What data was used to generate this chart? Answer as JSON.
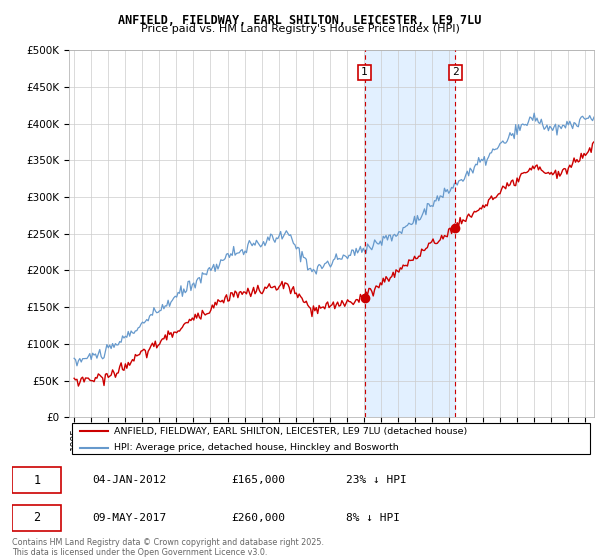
{
  "title": "ANFIELD, FIELDWAY, EARL SHILTON, LEICESTER, LE9 7LU",
  "subtitle": "Price paid vs. HM Land Registry's House Price Index (HPI)",
  "legend_line1": "ANFIELD, FIELDWAY, EARL SHILTON, LEICESTER, LE9 7LU (detached house)",
  "legend_line2": "HPI: Average price, detached house, Hinckley and Bosworth",
  "annotation1_label": "1",
  "annotation1_date": "04-JAN-2012",
  "annotation1_price": 165000,
  "annotation1_text": "23% ↓ HPI",
  "annotation1_year": 2012.04,
  "annotation1_dot_val": 163000,
  "annotation2_label": "2",
  "annotation2_date": "09-MAY-2017",
  "annotation2_price": 260000,
  "annotation2_text": "8% ↓ HPI",
  "annotation2_year": 2017.37,
  "annotation2_dot_val": 258000,
  "footer": "Contains HM Land Registry data © Crown copyright and database right 2025.\nThis data is licensed under the Open Government Licence v3.0.",
  "red_color": "#cc0000",
  "blue_color": "#6699cc",
  "shaded_region_color": "#ddeeff",
  "ylim": [
    0,
    500000
  ],
  "yticks": [
    0,
    50000,
    100000,
    150000,
    200000,
    250000,
    300000,
    350000,
    400000,
    450000,
    500000
  ],
  "ytick_labels": [
    "£0",
    "£50K",
    "£100K",
    "£150K",
    "£200K",
    "£250K",
    "£300K",
    "£350K",
    "£400K",
    "£450K",
    "£500K"
  ],
  "xmin": 1995.0,
  "xmax": 2025.5,
  "bg_color": "#f8f8f8"
}
